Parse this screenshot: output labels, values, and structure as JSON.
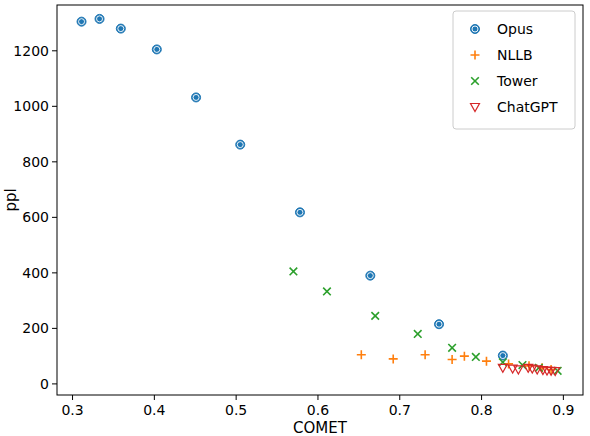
{
  "chart_data": {
    "type": "scatter",
    "x_label": "COMET",
    "y_label": "ppl",
    "xlim": [
      0.281,
      0.924
    ],
    "ylim": [
      -40,
      1365
    ],
    "xticks": [
      0.3,
      0.4,
      0.5,
      0.6,
      0.7,
      0.8,
      0.9
    ],
    "yticks": [
      0,
      200,
      400,
      600,
      800,
      1000,
      1200
    ],
    "grid": false,
    "legend": "upper right",
    "series": [
      {
        "name": "Opus",
        "color": "#1f77b4",
        "marker": "circle",
        "x": [
          0.311,
          0.333,
          0.359,
          0.403,
          0.451,
          0.505,
          0.578,
          0.664,
          0.748,
          0.826
        ],
        "values": [
          1305,
          1315,
          1280,
          1205,
          1032,
          862,
          618,
          390,
          215,
          102
        ]
      },
      {
        "name": "NLLB",
        "color": "#ff7f0e",
        "marker": "plus",
        "x": [
          0.653,
          0.692,
          0.731,
          0.764,
          0.779,
          0.806,
          0.833,
          0.858,
          0.874,
          0.885
        ],
        "values": [
          105,
          90,
          105,
          88,
          100,
          82,
          72,
          65,
          58,
          52
        ]
      },
      {
        "name": "Tower",
        "color": "#2ca02c",
        "marker": "x",
        "x": [
          0.57,
          0.611,
          0.67,
          0.722,
          0.764,
          0.793,
          0.826,
          0.85,
          0.87,
          0.893
        ],
        "values": [
          405,
          333,
          245,
          180,
          130,
          97,
          78,
          68,
          58,
          47
        ]
      },
      {
        "name": "ChatGPT",
        "color": "#d62728",
        "marker": "triangle_down",
        "x": [
          0.826,
          0.838,
          0.845,
          0.857,
          0.862,
          0.868,
          0.875,
          0.88,
          0.885,
          0.89
        ],
        "values": [
          58,
          55,
          52,
          58,
          55,
          52,
          50,
          48,
          47,
          46
        ]
      }
    ]
  }
}
